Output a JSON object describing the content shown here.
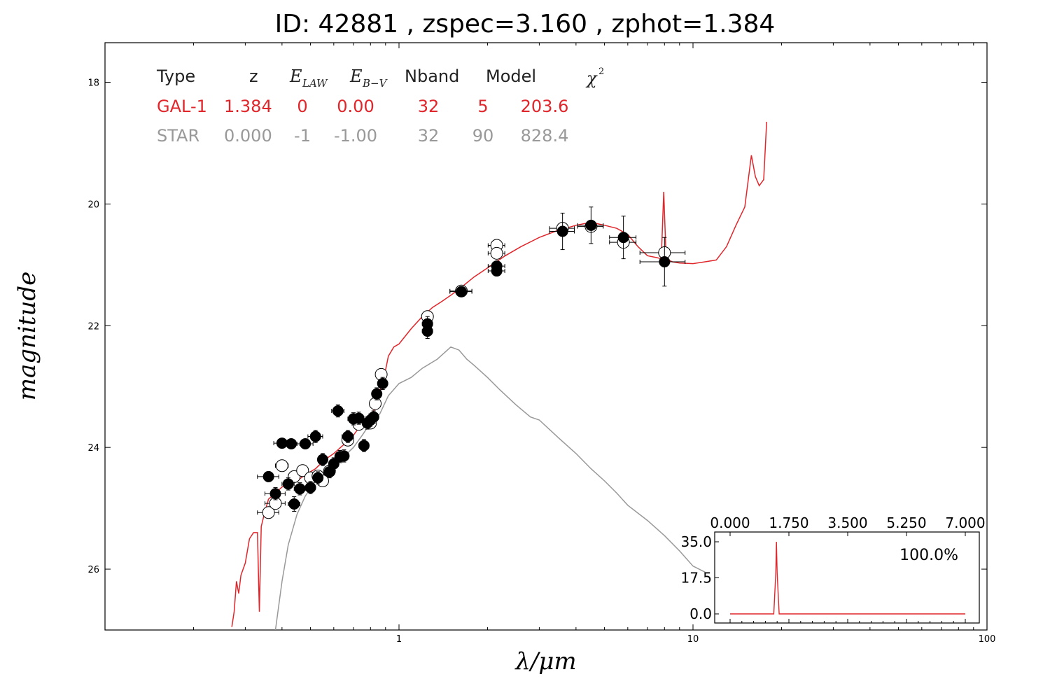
{
  "title": "ID:  42881 , zspec=3.160 , zphot=1.384",
  "colors": {
    "galaxy": "#e0262b",
    "star": "#999999",
    "data": "#000000"
  },
  "fit_table": {
    "headers": [
      "Type",
      "z",
      "E",
      "LAW",
      "E",
      "B−V",
      "Nband",
      "Model",
      "χ",
      "2"
    ],
    "rows": [
      {
        "name": "galaxy",
        "color": "#e0262b",
        "values": [
          "GAL-1",
          "1.384",
          "0",
          "0.00",
          "32",
          "5",
          "203.6"
        ]
      },
      {
        "name": "star",
        "color": "#999999",
        "values": [
          "STAR",
          "0.000",
          "-1",
          "-1.00",
          "32",
          "90",
          "828.4"
        ]
      }
    ]
  },
  "chart_data": [
    {
      "type": "scatter",
      "title": "ID:  42881 , zspec=3.160 , zphot=1.384",
      "xlabel": "λ/μm",
      "ylabel": "magnitude",
      "xscale": "log",
      "xlim": [
        0.1,
        100
      ],
      "ylim": [
        27,
        17.35
      ],
      "xticks": [
        1,
        10,
        100
      ],
      "xtick_labels": [
        "1",
        "10",
        "100"
      ],
      "yticks": [
        18,
        20,
        22,
        24,
        26
      ],
      "ytick_labels": [
        "18",
        "20",
        "22",
        "24",
        "26"
      ],
      "grid": false,
      "observed_points": [
        {
          "x": 0.36,
          "y": 24.48,
          "xerr": 0.03,
          "yerr": 0.08
        },
        {
          "x": 0.38,
          "y": 24.76,
          "xerr": 0.03,
          "yerr": 0.1
        },
        {
          "x": 0.4,
          "y": 23.93,
          "xerr": 0.025,
          "yerr": 0.07
        },
        {
          "x": 0.42,
          "y": 24.6,
          "xerr": 0.02,
          "yerr": 0.1
        },
        {
          "x": 0.43,
          "y": 23.94,
          "xerr": 0.03,
          "yerr": 0.08
        },
        {
          "x": 0.44,
          "y": 24.93,
          "xerr": 0.02,
          "yerr": 0.12
        },
        {
          "x": 0.46,
          "y": 24.68,
          "xerr": 0.02,
          "yerr": 0.1
        },
        {
          "x": 0.48,
          "y": 23.94,
          "xerr": 0.03,
          "yerr": 0.08
        },
        {
          "x": 0.5,
          "y": 24.66,
          "xerr": 0.02,
          "yerr": 0.1
        },
        {
          "x": 0.52,
          "y": 23.82,
          "xerr": 0.03,
          "yerr": 0.1
        },
        {
          "x": 0.53,
          "y": 24.5,
          "xerr": 0.02,
          "yerr": 0.1
        },
        {
          "x": 0.55,
          "y": 24.2,
          "xerr": 0.02,
          "yerr": 0.1
        },
        {
          "x": 0.58,
          "y": 24.4,
          "xerr": 0.02,
          "yerr": 0.1
        },
        {
          "x": 0.6,
          "y": 24.27,
          "xerr": 0.02,
          "yerr": 0.1
        },
        {
          "x": 0.62,
          "y": 23.4,
          "xerr": 0.03,
          "yerr": 0.1
        },
        {
          "x": 0.63,
          "y": 24.15,
          "xerr": 0.02,
          "yerr": 0.1
        },
        {
          "x": 0.65,
          "y": 24.14,
          "xerr": 0.02,
          "yerr": 0.1
        },
        {
          "x": 0.67,
          "y": 23.82,
          "xerr": 0.03,
          "yerr": 0.1
        },
        {
          "x": 0.7,
          "y": 23.53,
          "xerr": 0.03,
          "yerr": 0.1
        },
        {
          "x": 0.73,
          "y": 23.52,
          "xerr": 0.03,
          "yerr": 0.1
        },
        {
          "x": 0.76,
          "y": 23.97,
          "xerr": 0.03,
          "yerr": 0.1
        },
        {
          "x": 0.78,
          "y": 23.6,
          "xerr": 0.03,
          "yerr": 0.1
        },
        {
          "x": 0.8,
          "y": 23.55,
          "xerr": 0.03,
          "yerr": 0.1
        },
        {
          "x": 0.82,
          "y": 23.5,
          "xerr": 0.03,
          "yerr": 0.1
        },
        {
          "x": 0.84,
          "y": 23.12,
          "xerr": 0.03,
          "yerr": 0.1
        },
        {
          "x": 0.88,
          "y": 22.95,
          "xerr": 0.03,
          "yerr": 0.1
        },
        {
          "x": 1.25,
          "y": 21.97,
          "xerr": 0.05,
          "yerr": 0.12
        },
        {
          "x": 1.25,
          "y": 22.09,
          "xerr": 0.05,
          "yerr": 0.12
        },
        {
          "x": 1.63,
          "y": 21.44,
          "xerr": 0.14,
          "yerr": 0.08
        },
        {
          "x": 2.15,
          "y": 21.02,
          "xerr": 0.14,
          "yerr": 0.08
        },
        {
          "x": 2.15,
          "y": 21.1,
          "xerr": 0.14,
          "yerr": 0.08
        },
        {
          "x": 3.6,
          "y": 20.45,
          "xerr": 0.35,
          "yerr": 0.3
        },
        {
          "x": 4.5,
          "y": 20.35,
          "xerr": 0.45,
          "yerr": 0.3
        },
        {
          "x": 5.8,
          "y": 20.55,
          "xerr": 0.6,
          "yerr": 0.35
        },
        {
          "x": 8.0,
          "y": 20.95,
          "xerr": 1.4,
          "yerr": 0.4
        }
      ],
      "model_points": [
        {
          "x": 0.36,
          "y": 25.07,
          "xerr": 0.03
        },
        {
          "x": 0.38,
          "y": 24.92,
          "xerr": 0.03
        },
        {
          "x": 0.4,
          "y": 24.3,
          "xerr": 0.02
        },
        {
          "x": 0.44,
          "y": 24.48,
          "xerr": 0.02
        },
        {
          "x": 0.47,
          "y": 24.38,
          "xerr": 0.02
        },
        {
          "x": 0.5,
          "y": 24.5,
          "xerr": 0.02
        },
        {
          "x": 0.53,
          "y": 24.47,
          "xerr": 0.02
        },
        {
          "x": 0.55,
          "y": 24.55,
          "xerr": 0.02
        },
        {
          "x": 0.58,
          "y": 24.39,
          "xerr": 0.02
        },
        {
          "x": 0.67,
          "y": 23.88,
          "xerr": 0.03
        },
        {
          "x": 0.73,
          "y": 23.62,
          "xerr": 0.03
        },
        {
          "x": 0.8,
          "y": 23.6,
          "xerr": 0.03
        },
        {
          "x": 0.83,
          "y": 23.28,
          "xerr": 0.03
        },
        {
          "x": 0.87,
          "y": 22.8,
          "xerr": 0.03
        },
        {
          "x": 1.25,
          "y": 21.85,
          "xerr": 0.05
        },
        {
          "x": 1.63,
          "y": 21.43,
          "xerr": 0.14
        },
        {
          "x": 2.15,
          "y": 20.68,
          "xerr": 0.14
        },
        {
          "x": 2.15,
          "y": 20.81,
          "xerr": 0.14
        },
        {
          "x": 3.6,
          "y": 20.4,
          "xerr": 0.35
        },
        {
          "x": 4.5,
          "y": 20.37,
          "xerr": 0.45
        },
        {
          "x": 5.8,
          "y": 20.63,
          "xerr": 0.6
        },
        {
          "x": 8.0,
          "y": 20.8,
          "xerr": 1.4
        }
      ],
      "series": [
        {
          "name": "GAL-1",
          "color": "#e0262b",
          "x": [
            0.27,
            0.275,
            0.28,
            0.285,
            0.29,
            0.3,
            0.31,
            0.32,
            0.33,
            0.335,
            0.34,
            0.35,
            0.36,
            0.38,
            0.4,
            0.42,
            0.45,
            0.48,
            0.52,
            0.56,
            0.6,
            0.65,
            0.7,
            0.75,
            0.8,
            0.84,
            0.87,
            0.89,
            0.92,
            0.96,
            1.0,
            1.1,
            1.2,
            1.3,
            1.4,
            1.5,
            1.6,
            1.8,
            2.0,
            2.3,
            2.6,
            3.0,
            3.4,
            4.0,
            4.5,
            5.0,
            5.5,
            6.0,
            6.5,
            7.0,
            7.5,
            7.8,
            7.95,
            8.1,
            8.5,
            9.0,
            10.0,
            11.0,
            12.0,
            13.0,
            14.0,
            15.0,
            15.8,
            16.3,
            16.8,
            17.4,
            17.8
          ],
          "y": [
            26.95,
            26.7,
            26.2,
            26.4,
            26.1,
            25.9,
            25.5,
            25.4,
            25.4,
            26.7,
            25.3,
            25.05,
            24.85,
            24.75,
            24.65,
            24.6,
            24.55,
            24.45,
            24.35,
            24.2,
            24.1,
            23.95,
            23.8,
            23.6,
            23.5,
            23.3,
            23.0,
            22.85,
            22.5,
            22.35,
            22.3,
            22.05,
            21.85,
            21.7,
            21.6,
            21.5,
            21.4,
            21.2,
            21.05,
            20.85,
            20.7,
            20.55,
            20.45,
            20.35,
            20.3,
            20.35,
            20.4,
            20.5,
            20.7,
            20.85,
            20.88,
            20.9,
            19.8,
            20.9,
            20.95,
            20.97,
            20.98,
            20.95,
            20.92,
            20.7,
            20.35,
            20.05,
            19.2,
            19.55,
            19.7,
            19.6,
            18.65
          ]
        },
        {
          "name": "STAR",
          "color": "#999999",
          "x": [
            0.38,
            0.4,
            0.42,
            0.45,
            0.48,
            0.52,
            0.56,
            0.6,
            0.65,
            0.7,
            0.75,
            0.8,
            0.86,
            0.92,
            1.0,
            1.1,
            1.2,
            1.35,
            1.5,
            1.6,
            1.7,
            1.8,
            2.0,
            2.2,
            2.5,
            2.8,
            3.0,
            3.5,
            4.0,
            4.5,
            5.0,
            5.5,
            6.0,
            7.0,
            8.0,
            9.0,
            10.0,
            11.0
          ],
          "y": [
            27.0,
            26.2,
            25.6,
            25.1,
            24.8,
            24.55,
            24.4,
            24.3,
            24.15,
            24.0,
            23.8,
            23.6,
            23.45,
            23.15,
            22.95,
            22.85,
            22.7,
            22.55,
            22.35,
            22.4,
            22.55,
            22.65,
            22.85,
            23.05,
            23.3,
            23.5,
            23.55,
            23.85,
            24.1,
            24.35,
            24.55,
            24.75,
            24.95,
            25.2,
            25.45,
            25.7,
            25.95,
            26.05
          ]
        }
      ]
    },
    {
      "type": "line",
      "xlim": [
        0.0,
        7.0
      ],
      "ylim": [
        0.0,
        35.0
      ],
      "xticks": [
        0.0,
        1.75,
        3.5,
        5.25,
        7.0
      ],
      "xtick_labels": [
        "0.000",
        "1.750",
        "3.500",
        "5.250",
        "7.000"
      ],
      "yticks": [
        0.0,
        17.5,
        35.0
      ],
      "ytick_labels": [
        "0.0",
        "17.5",
        "35.0"
      ],
      "annotation": "100.0%",
      "series": [
        {
          "color": "#e0262b",
          "x": [
            0.0,
            1.3,
            1.36,
            1.38,
            1.4,
            1.46,
            7.0
          ],
          "y": [
            0.0,
            0.0,
            20.0,
            35.0,
            20.0,
            0.0,
            0.0
          ]
        }
      ]
    }
  ]
}
